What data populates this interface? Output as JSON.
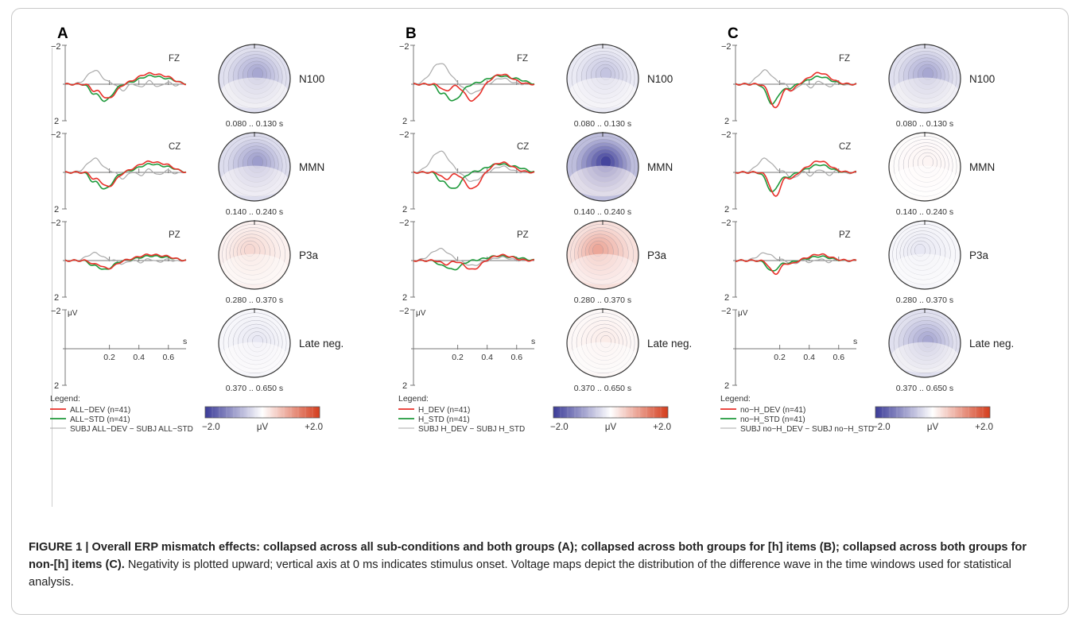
{
  "figure": {
    "caption_bold": "FIGURE 1 | Overall ERP mismatch effects: collapsed across all sub-conditions and both groups (A); collapsed across both groups for [h] items (B); collapsed across both groups for non-[h] items (C).",
    "caption_rest": " Negativity is plotted upward; vertical axis at 0 ms indicates stimulus onset. Voltage maps depict the distribution of the difference wave in the time windows used for statistical analysis."
  },
  "axis": {
    "top_label": "−2",
    "bottom_label": "2",
    "unit_label": "μV",
    "x_unit": "s",
    "x_ticks": [
      "0.2",
      "0.4",
      "0.6"
    ]
  },
  "colorbar": {
    "min": "−2.0",
    "mid": "μV",
    "max": "+2.0",
    "colors": [
      "#3b3b98",
      "#ffffff",
      "#d43c1c"
    ]
  },
  "legend_title": "Legend:",
  "series_colors": {
    "dev": "#e8302a",
    "std": "#1f9a3c",
    "diff": "#aaaaaa"
  },
  "components": [
    "N100",
    "MMN",
    "P3a",
    "Late neg."
  ],
  "windows": [
    "0.080 .. 0.130 s",
    "0.140 .. 0.240 s",
    "0.280 .. 0.370 s",
    "0.370 .. 0.650 s"
  ],
  "channels": [
    "FZ",
    "CZ",
    "PZ"
  ],
  "panels": [
    {
      "label": "A",
      "legend": [
        "ALL−DEV (n=41)",
        "ALL−STD (n=41)",
        "SUBJ ALL−DEV − SUBJ ALL−STD"
      ],
      "map_values": [
        -0.45,
        -0.5,
        0.2,
        -0.12
      ]
    },
    {
      "label": "B",
      "legend": [
        "H_DEV (n=41)",
        "H_STD (n=41)",
        "SUBJ H_DEV − SUBJ H_STD"
      ],
      "map_values": [
        -0.3,
        -0.95,
        0.45,
        0.1
      ]
    },
    {
      "label": "C",
      "legend": [
        "no−H_DEV (n=41)",
        "no−H_STD (n=41)",
        "SUBJ no−H_DEV − SUBJ no−H_STD"
      ],
      "map_values": [
        -0.45,
        0.05,
        -0.12,
        -0.45
      ]
    }
  ]
}
